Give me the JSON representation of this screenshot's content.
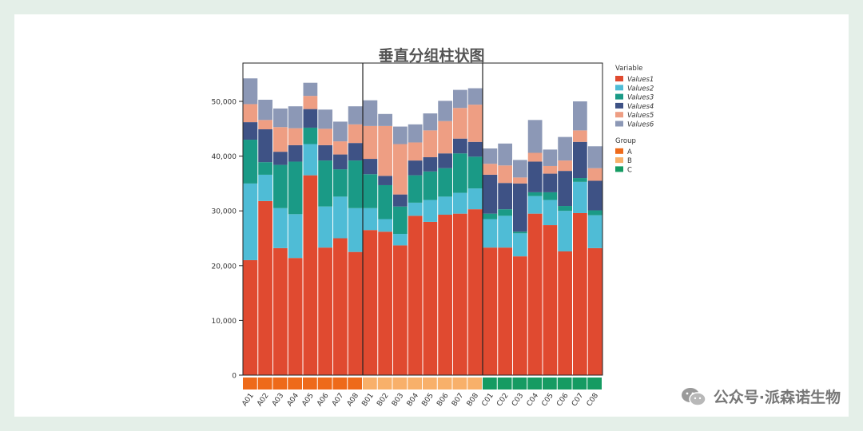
{
  "chart_data": {
    "type": "bar",
    "stacked": true,
    "title": "垂直分组柱状图",
    "categories": [
      "A01",
      "A02",
      "A03",
      "A04",
      "A05",
      "A06",
      "A07",
      "A08",
      "B01",
      "B02",
      "B03",
      "B04",
      "B05",
      "B06",
      "B07",
      "B08",
      "C01",
      "C02",
      "C03",
      "C04",
      "C05",
      "C06",
      "C07",
      "C08"
    ],
    "category_groups": [
      "A",
      "A",
      "A",
      "A",
      "A",
      "A",
      "A",
      "A",
      "B",
      "B",
      "B",
      "B",
      "B",
      "B",
      "B",
      "B",
      "C",
      "C",
      "C",
      "C",
      "C",
      "C",
      "C",
      "C"
    ],
    "series": [
      {
        "name": "Values1",
        "color": "#e04a30",
        "values": [
          21000,
          31800,
          23200,
          21400,
          36500,
          23300,
          25000,
          22500,
          26500,
          26200,
          23700,
          29100,
          28000,
          29300,
          29500,
          30300,
          23300,
          23300,
          21700,
          29500,
          27400,
          22600,
          29600,
          23200
        ]
      },
      {
        "name": "Values2",
        "color": "#4fbcd6",
        "values": [
          14000,
          4800,
          7300,
          8000,
          5700,
          7500,
          7600,
          8000,
          4000,
          2300,
          2100,
          2400,
          4000,
          3300,
          3800,
          3800,
          5200,
          5800,
          4200,
          3200,
          4600,
          7400,
          5700,
          6000
        ]
      },
      {
        "name": "Values3",
        "color": "#1a9a86",
        "values": [
          8000,
          2300,
          7900,
          9600,
          3000,
          8400,
          5000,
          8700,
          6200,
          6200,
          5000,
          5000,
          5200,
          5200,
          7200,
          5800,
          1000,
          1200,
          300,
          700,
          1400,
          900,
          700,
          900
        ]
      },
      {
        "name": "Values4",
        "color": "#3e5285",
        "values": [
          3200,
          6000,
          2400,
          3000,
          3400,
          2800,
          2700,
          3200,
          2800,
          1700,
          2200,
          2700,
          2600,
          2700,
          2700,
          2700,
          7100,
          4800,
          8800,
          5600,
          3400,
          6400,
          6600,
          5400
        ]
      },
      {
        "name": "Values5",
        "color": "#ee9e83",
        "values": [
          3300,
          1700,
          4500,
          3100,
          2400,
          3000,
          2400,
          3400,
          6000,
          9100,
          9200,
          3300,
          4900,
          5900,
          5600,
          6800,
          2000,
          3200,
          1100,
          1600,
          1400,
          1900,
          2100,
          2300
        ]
      },
      {
        "name": "Values6",
        "color": "#8c98b6",
        "values": [
          4700,
          3700,
          3400,
          4000,
          2400,
          3500,
          3600,
          3300,
          4700,
          2200,
          3200,
          3300,
          3100,
          3700,
          3300,
          3000,
          2800,
          4000,
          3200,
          6000,
          3000,
          4300,
          5300,
          4000
        ]
      }
    ],
    "ylim": [
      0,
      57000
    ],
    "yticks": [
      0,
      10000,
      20000,
      30000,
      40000,
      50000
    ],
    "ytick_labels": [
      "0",
      "10,000",
      "20,000",
      "30,000",
      "40,000",
      "50,000"
    ],
    "legend_variable": {
      "title": "Variable",
      "entries": [
        {
          "label": "Values1",
          "color": "#e04a30"
        },
        {
          "label": "Values2",
          "color": "#4fbcd6"
        },
        {
          "label": "Values3",
          "color": "#1a9a86"
        },
        {
          "label": "Values4",
          "color": "#3e5285"
        },
        {
          "label": "Values5",
          "color": "#ee9e83"
        },
        {
          "label": "Values6",
          "color": "#8c98b6"
        }
      ]
    },
    "legend_group": {
      "title": "Group",
      "entries": [
        {
          "label": "A",
          "color": "#ee6a1a"
        },
        {
          "label": "B",
          "color": "#f8b06a"
        },
        {
          "label": "C",
          "color": "#159b62"
        }
      ]
    },
    "legend_position": "right"
  },
  "watermark": {
    "text": "公众号·派森诺生物",
    "icon": "wechat-icon"
  }
}
